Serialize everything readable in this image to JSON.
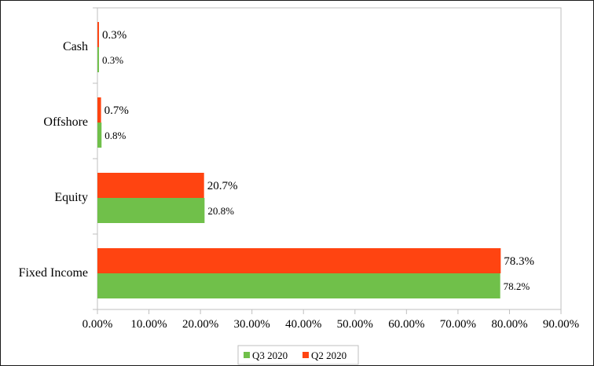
{
  "chart_data": {
    "type": "bar",
    "orientation": "horizontal",
    "categories": [
      "Cash",
      "Offshore",
      "Equity",
      "Fixed Income"
    ],
    "series": [
      {
        "name": "Q2 2020",
        "color": "#ff4411",
        "values": [
          0.3,
          0.7,
          20.7,
          78.3
        ],
        "labels": [
          "0.3%",
          "0.7%",
          "20.7%",
          "78.3%"
        ]
      },
      {
        "name": "Q3 2020",
        "color": "#70c04a",
        "values": [
          0.3,
          0.8,
          20.8,
          78.2
        ],
        "labels": [
          "0.3%",
          "0.8%",
          "20.8%",
          "78.2%"
        ]
      }
    ],
    "x_axis": {
      "min": 0,
      "max": 90,
      "step": 10,
      "tick_labels": [
        "0.00%",
        "10.00%",
        "20.00%",
        "30.00%",
        "40.00%",
        "50.00%",
        "60.00%",
        "70.00%",
        "80.00%",
        "90.00%"
      ]
    },
    "grid": false,
    "legend_position": "bottom",
    "legend": [
      {
        "name": "Q3 2020",
        "color": "#70c04a"
      },
      {
        "name": "Q2 2020",
        "color": "#ff4411"
      }
    ],
    "colors": {
      "axis": "#bfbfbf",
      "legend_border": "#bfbfbf"
    }
  }
}
